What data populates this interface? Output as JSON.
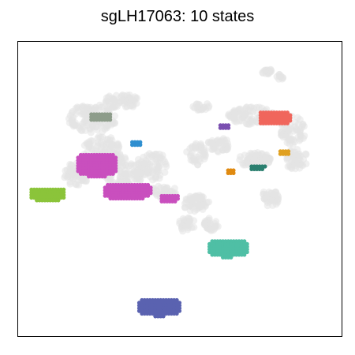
{
  "chart_data": {
    "type": "scatter",
    "title": "sgLH17063: 10 states",
    "xlabel": "",
    "ylabel": "",
    "axes_ticks": false,
    "grid": false,
    "legend": "none",
    "background_color": "#e3e3e3",
    "highlight_clusters": [
      {
        "color": "#f0665c",
        "center": [
          0.792,
          0.742
        ],
        "extent": [
          0.101,
          0.053
        ]
      },
      {
        "color": "#8d9c8a",
        "center": [
          0.255,
          0.745
        ],
        "extent": [
          0.074,
          0.035
        ]
      },
      {
        "color": "#7a4fb0",
        "center": [
          0.635,
          0.715
        ],
        "extent": [
          0.036,
          0.021
        ]
      },
      {
        "color": "#2f8fd0",
        "center": [
          0.363,
          0.656
        ],
        "extent": [
          0.037,
          0.024
        ]
      },
      {
        "color": "#e0a020",
        "center": [
          0.821,
          0.625
        ],
        "extent": [
          0.037,
          0.024
        ]
      },
      {
        "color": "#c94fbe",
        "center": [
          0.242,
          0.583
        ],
        "extent": [
          0.13,
          0.083
        ]
      },
      {
        "color": "#e08a10",
        "center": [
          0.657,
          0.56
        ],
        "extent": [
          0.032,
          0.024
        ]
      },
      {
        "color": "#2a7f6f",
        "center": [
          0.74,
          0.575
        ],
        "extent": [
          0.053,
          0.021
        ]
      },
      {
        "color": "#c94fbe",
        "center": [
          0.337,
          0.493
        ],
        "extent": [
          0.153,
          0.059
        ]
      },
      {
        "color": "#c94fbe",
        "center": [
          0.466,
          0.469
        ],
        "extent": [
          0.061,
          0.032
        ]
      },
      {
        "color": "#8bc43a",
        "center": [
          0.09,
          0.483
        ],
        "extent": [
          0.114,
          0.048
        ]
      },
      {
        "color": "#4fbfa5",
        "center": [
          0.647,
          0.299
        ],
        "extent": [
          0.127,
          0.064
        ]
      },
      {
        "color": "#5a62b0",
        "center": [
          0.436,
          0.099
        ],
        "extent": [
          0.14,
          0.064
        ]
      }
    ]
  }
}
